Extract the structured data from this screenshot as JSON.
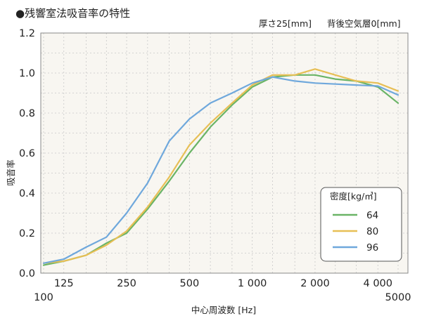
{
  "chart_data": {
    "type": "line",
    "title": "●残響室法吸音率の特性",
    "subtitle_thickness": "厚さ25[mm]",
    "subtitle_airlayer": "背後空気層0[mm]",
    "ylabel": "吸音率",
    "xlabel": "中心周波数 [Hz]",
    "x_scale": "log",
    "xlim": [
      100,
      5000
    ],
    "ylim": [
      0,
      1.2
    ],
    "grid": true,
    "y_ticks": [
      "0.0",
      "0.2",
      "0.4",
      "0.6",
      "0.8",
      "1.0",
      "1.2"
    ],
    "x_tick_labels_upper": [
      {
        "value": 125,
        "label": "125"
      },
      {
        "value": 250,
        "label": "250"
      },
      {
        "value": 500,
        "label": "500"
      },
      {
        "value": 1000,
        "label": "1 000"
      },
      {
        "value": 2000,
        "label": "2 000"
      },
      {
        "value": 4000,
        "label": "4 000"
      }
    ],
    "x_tick_labels_lower": [
      {
        "value": 100,
        "label": "100"
      },
      {
        "value": 5000,
        "label": "5000"
      }
    ],
    "legend": {
      "title": "密度[kg/㎥]",
      "placement": "bottom-right"
    },
    "x": [
      100,
      125,
      160,
      200,
      250,
      315,
      400,
      500,
      630,
      800,
      1000,
      1250,
      1600,
      2000,
      2500,
      3150,
      4000,
      5000
    ],
    "series": [
      {
        "name": "64",
        "color": "#6ab466",
        "values": [
          0.04,
          0.06,
          0.09,
          0.15,
          0.2,
          0.32,
          0.46,
          0.6,
          0.73,
          0.84,
          0.93,
          0.98,
          0.99,
          0.99,
          0.97,
          0.96,
          0.93,
          0.85
        ]
      },
      {
        "name": "80",
        "color": "#e7bf55",
        "values": [
          0.05,
          0.06,
          0.09,
          0.14,
          0.21,
          0.33,
          0.48,
          0.64,
          0.75,
          0.85,
          0.94,
          0.99,
          0.99,
          1.02,
          0.99,
          0.96,
          0.95,
          0.91
        ]
      },
      {
        "name": "96",
        "color": "#6fa8dc",
        "values": [
          0.05,
          0.07,
          0.13,
          0.18,
          0.3,
          0.45,
          0.66,
          0.77,
          0.85,
          0.9,
          0.95,
          0.98,
          0.96,
          0.95,
          0.945,
          0.94,
          0.935,
          0.89
        ]
      }
    ]
  }
}
